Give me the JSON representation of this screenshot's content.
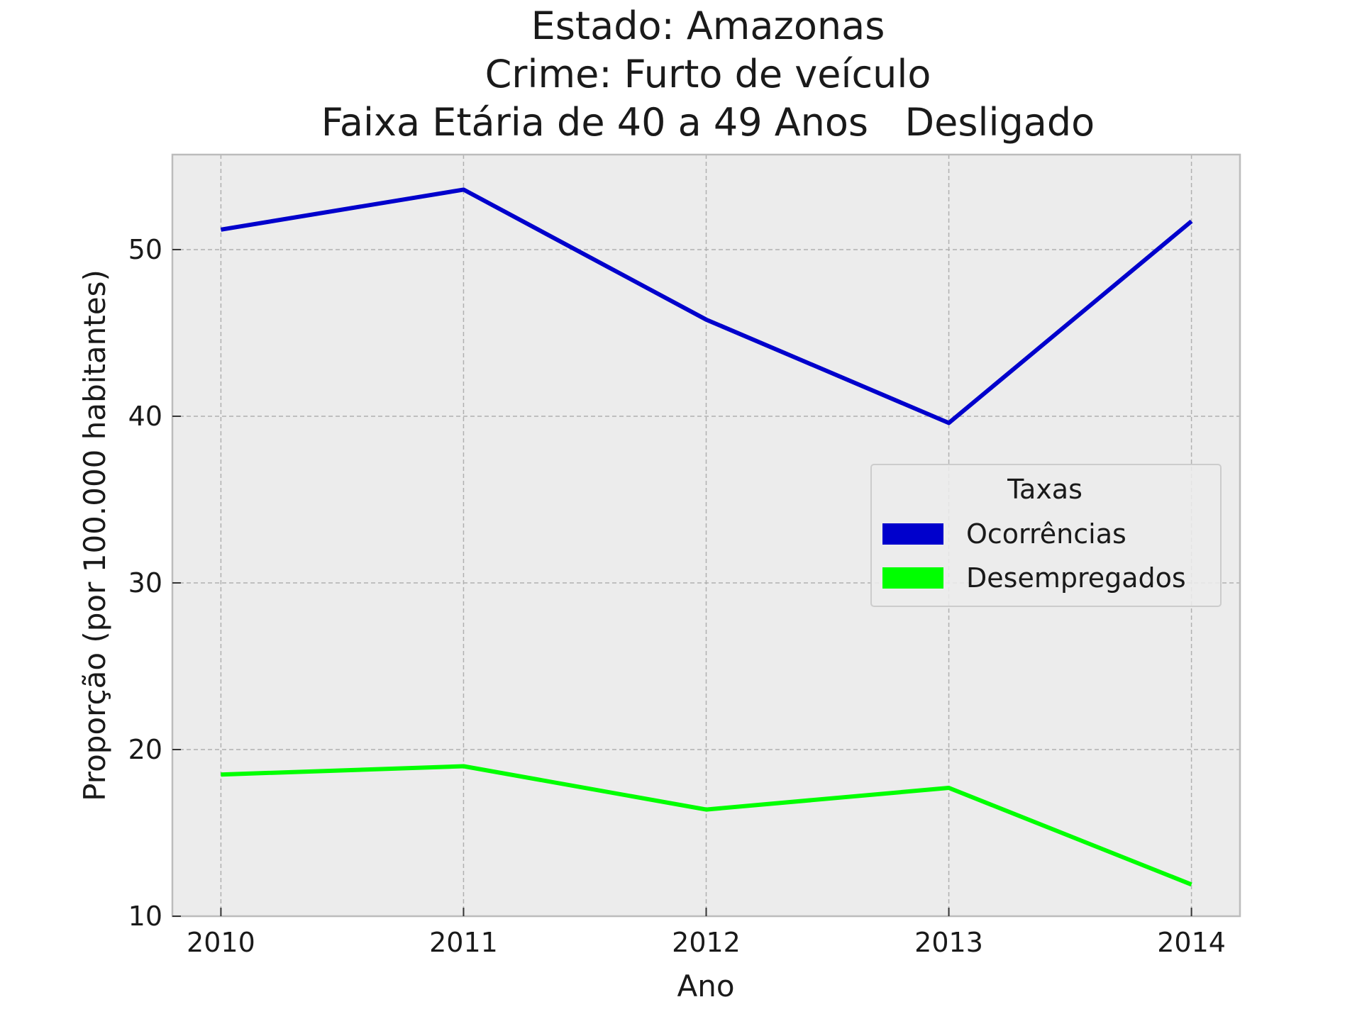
{
  "chart_data": {
    "type": "line",
    "title_lines": [
      "Estado: Amazonas",
      "Crime: Furto de veículo",
      "Faixa Etária de 40 a 49 Anos   Desligado"
    ],
    "xlabel": "Ano",
    "ylabel": "Proporção (por 100.000 habitantes)",
    "x": [
      2010,
      2011,
      2012,
      2013,
      2014
    ],
    "x_tick_labels": [
      "2010",
      "2011",
      "2012",
      "2013",
      "2014"
    ],
    "y_ticks": [
      10,
      20,
      30,
      40,
      50
    ],
    "y_tick_labels": [
      "10",
      "20",
      "30",
      "40",
      "50"
    ],
    "xlim": [
      2009.8,
      2014.2
    ],
    "ylim": [
      10,
      55.7
    ],
    "grid": true,
    "legend": {
      "title": "Taxas",
      "placement": "center-right"
    },
    "series": [
      {
        "name": "Ocorrências",
        "color": "#0000cc",
        "values": [
          51.2,
          53.6,
          45.8,
          39.6,
          51.7
        ]
      },
      {
        "name": "Desempregados",
        "color": "#00ff00",
        "values": [
          18.5,
          19.0,
          16.4,
          17.7,
          11.9
        ]
      }
    ],
    "colors": {
      "plot_background": "#ececec",
      "grid": "#b0b0b0",
      "frame": "#bcbcbc"
    }
  }
}
